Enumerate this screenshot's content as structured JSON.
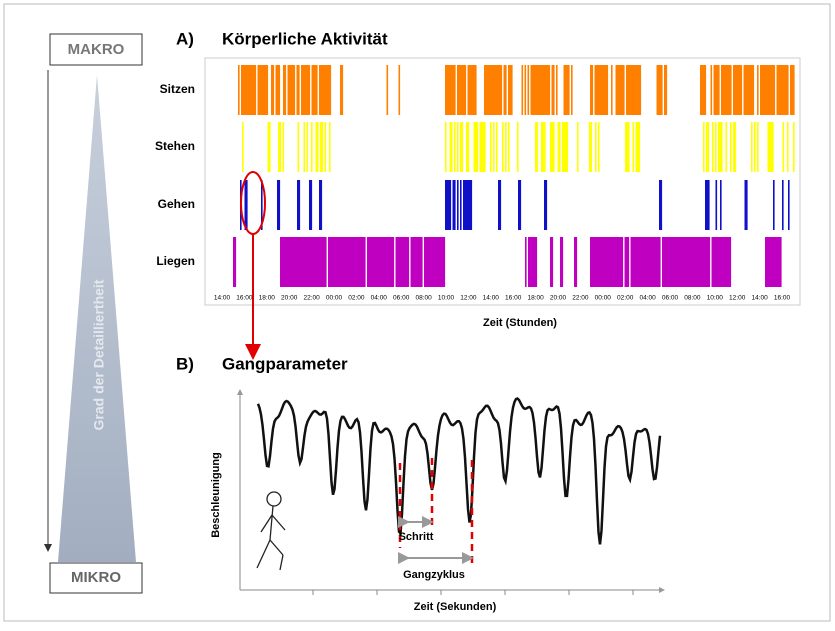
{
  "macro": "MAKRO",
  "micro": "MIKRO",
  "detail_axis": "Grad der Detailliertheit",
  "panel_a": {
    "label": "A)",
    "title": "Körperliche Aktivität",
    "rows": [
      "Sitzen",
      "Stehen",
      "Gehen",
      "Liegen"
    ],
    "time_ticks": [
      "14:00",
      "16:00",
      "18:00",
      "20:00",
      "22:00",
      "00:00",
      "02:00",
      "04:00",
      "06:00",
      "08:00",
      "10:00",
      "12:00",
      "14:00",
      "16:00",
      "18:00",
      "20:00",
      "22:00",
      "00:00",
      "02:00",
      "04:00",
      "06:00",
      "08:00",
      "10:00",
      "12:00",
      "14:00",
      "16:00"
    ],
    "x_axis_title": "Zeit (Stunden)"
  },
  "panel_b": {
    "label": "B)",
    "title": "Gangparameter",
    "y_axis_title": "Beschleunigung",
    "x_axis_title": "Zeit (Sekunden)",
    "step": "Schritt",
    "gait_cycle": "Gangzyklus"
  }
}
